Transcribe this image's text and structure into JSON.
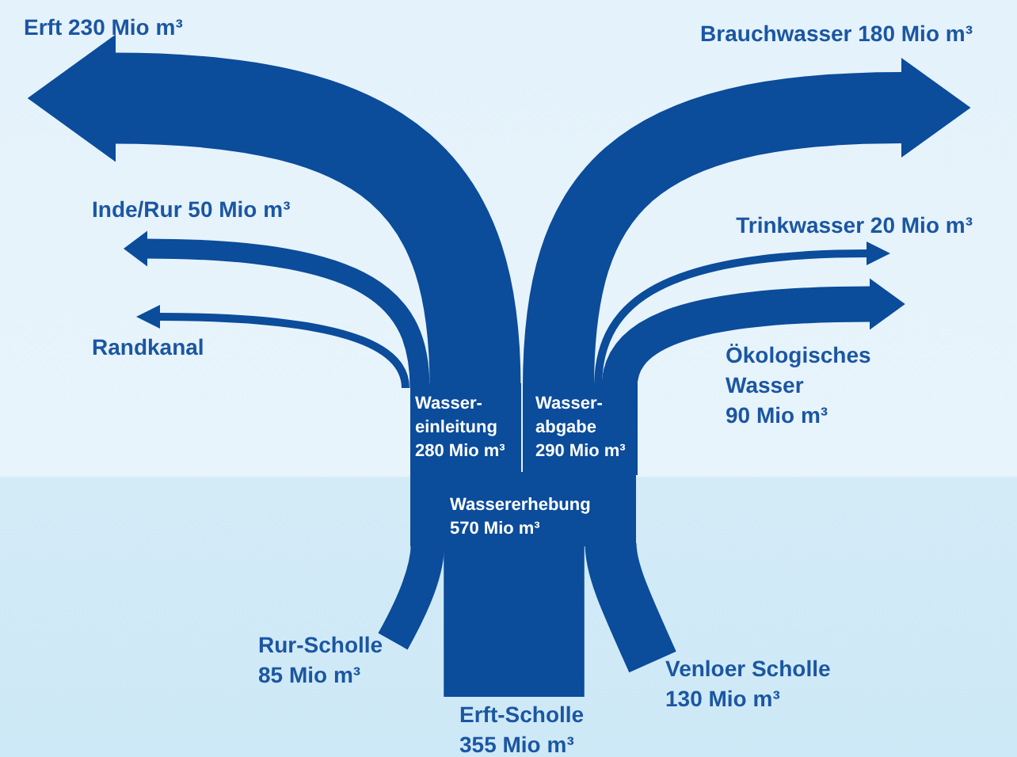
{
  "chart_data": {
    "type": "other",
    "color": "#0b4c9b",
    "categories": [
      "Erft",
      "Inde/Rur",
      "Randkanal",
      "Wasser-\neinleitung",
      "Wasser-\nabgabe",
      "Brauchwasser",
      "Trinkwasser",
      "Ökologisches\nWasser",
      "Wassererhebung",
      "Rur-Scholle",
      "Erft-Scholle",
      "Venloer Scholle"
    ],
    "values": [
      230,
      50,
      null,
      280,
      290,
      180,
      20,
      90,
      570,
      85,
      355,
      130
    ],
    "value_labels": [
      "230 Mio m³",
      "50 Mio m³",
      null,
      "280 Mio m³",
      "290 Mio m³",
      "180 Mio m³",
      "20 Mio m³",
      "90 Mio m³",
      "570 Mio m³",
      "85 Mio m³",
      "355 Mio m³",
      "130 Mio m³"
    ]
  }
}
